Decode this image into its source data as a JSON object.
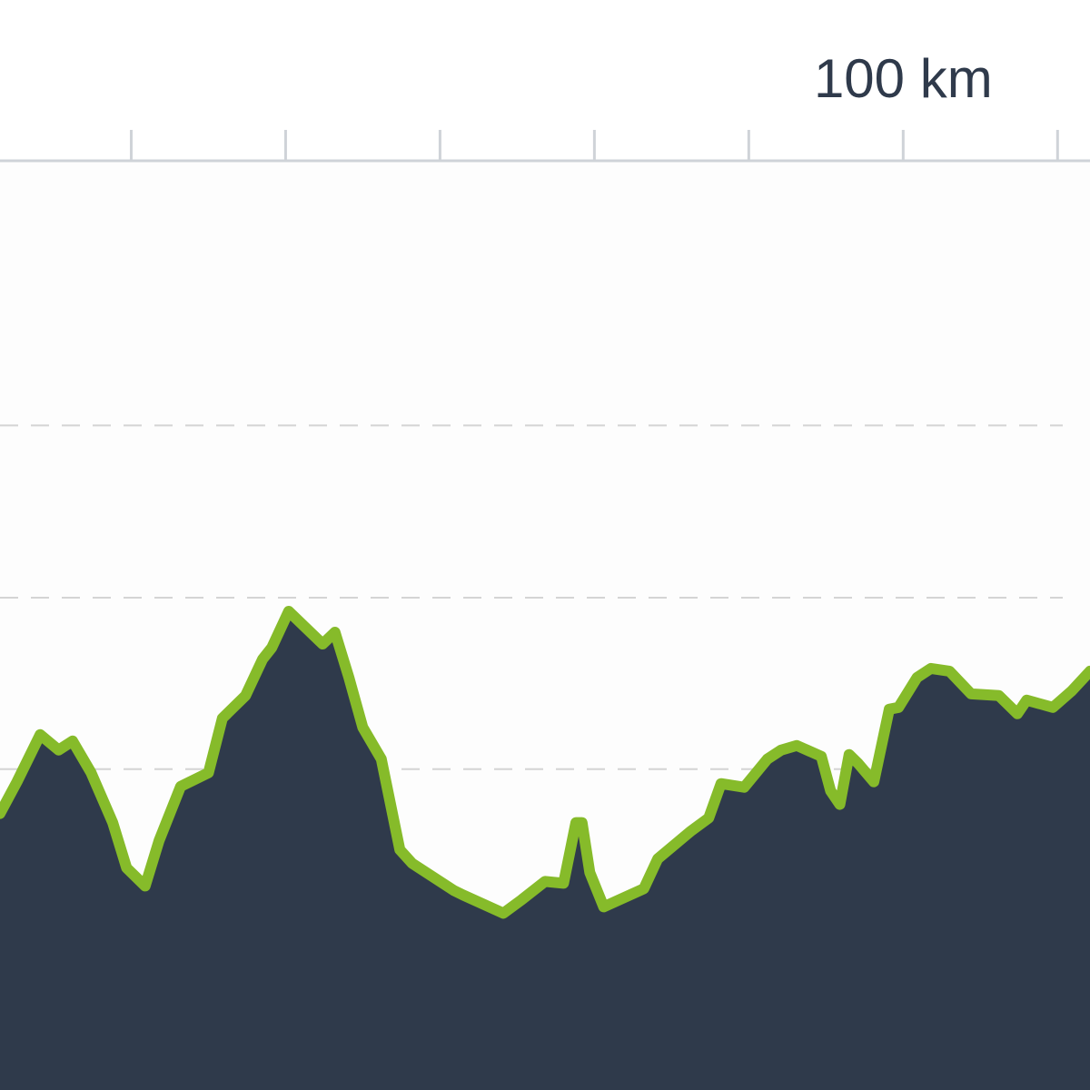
{
  "chart_data": {
    "type": "area",
    "x": [
      41.5,
      42.6,
      44.1,
      45.3,
      46.2,
      47.4,
      48.8,
      49.7,
      50.9,
      51.8,
      53.2,
      55.0,
      55.9,
      57.4,
      58.5,
      59.1,
      60.2,
      62.4,
      63.2,
      64.1,
      65.0,
      66.2,
      67.4,
      68.2,
      70.9,
      71.5,
      74.1,
      75.3,
      76.8,
      78.0,
      78.8,
      79.2,
      79.7,
      80.6,
      83.2,
      84.1,
      86.2,
      87.4,
      88.2,
      89.7,
      91.2,
      92.1,
      93.1,
      94.7,
      95.3,
      95.9,
      96.5,
      97.1,
      98.1,
      99.1,
      99.7,
      100.9,
      101.8,
      103.0,
      104.4,
      106.2,
      107.4,
      108.0,
      109.7,
      110.9,
      112.1
    ],
    "values": [
      305,
      340,
      392,
      375,
      385,
      350,
      295,
      245,
      225,
      275,
      335,
      350,
      410,
      435,
      475,
      488,
      528,
      492,
      505,
      455,
      400,
      365,
      265,
      250,
      220,
      215,
      195,
      210,
      230,
      228,
      295,
      295,
      240,
      202,
      222,
      255,
      285,
      300,
      338,
      334,
      365,
      375,
      380,
      368,
      330,
      315,
      370,
      360,
      340,
      420,
      422,
      455,
      465,
      462,
      437,
      435,
      415,
      430,
      422,
      440,
      462
    ],
    "color": "#86bb2a",
    "fill_color": "#2f3a4b",
    "xlim": [
      41.5,
      112.1
    ],
    "xticks": [
      50,
      60,
      70,
      80,
      90,
      {
        "value": 100,
        "label": "100 km"
      },
      110
    ],
    "ylim": [
      0,
      1025
    ],
    "yticks": [
      354,
      543,
      733
    ],
    "grid": true
  }
}
